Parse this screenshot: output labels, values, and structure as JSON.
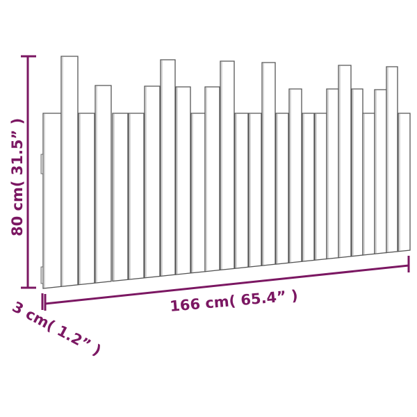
{
  "dimensions": {
    "height_label": "80 cm( 31.5” )",
    "width_label": "166 cm( 65.4” )",
    "depth_label": "3 cm( 1.2” )"
  },
  "colors": {
    "dimension": "#7b1762",
    "outline": "#555555",
    "plank": "#ffffff"
  }
}
